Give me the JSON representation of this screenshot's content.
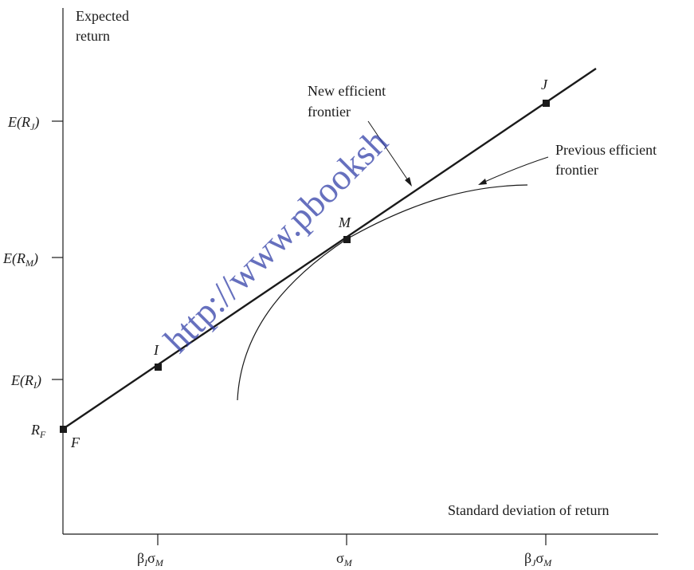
{
  "axes": {
    "y_title_line1": "Expected",
    "y_title_line2": "return",
    "x_title": "Standard deviation of return"
  },
  "y_ticks": [
    {
      "pre": "E(R",
      "sub": "J",
      "post": ")"
    },
    {
      "pre": "E(R",
      "sub": "M",
      "post": ")"
    },
    {
      "pre": "E(R",
      "sub": "I",
      "post": ")"
    },
    {
      "pre": "R",
      "sub": "F",
      "post": ""
    }
  ],
  "x_ticks": [
    {
      "sym1": "β",
      "sub1": "I",
      "sym2": "σ",
      "sub2": "M"
    },
    {
      "sym1": "",
      "sub1": "",
      "sym2": "σ",
      "sub2": "M"
    },
    {
      "sym1": "β",
      "sub1": "J",
      "sym2": "σ",
      "sub2": "M"
    }
  ],
  "points": {
    "F": "F",
    "I": "I",
    "M": "M",
    "J": "J"
  },
  "annotations": {
    "new_frontier_line1": "New efficient",
    "new_frontier_line2": "frontier",
    "prev_frontier_line1": "Previous efficient",
    "prev_frontier_line2": "frontier"
  },
  "watermark": "http://www.pbooksh",
  "colors": {
    "ink": "#1a1a1a",
    "watermark": "#3340a8"
  }
}
